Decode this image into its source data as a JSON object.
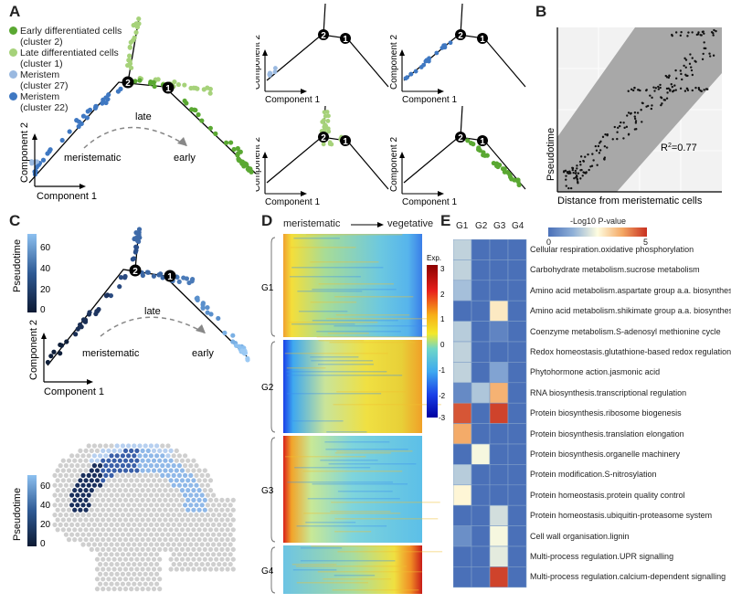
{
  "panels": {
    "a": "A",
    "b": "B",
    "c": "C",
    "d": "D",
    "e": "E"
  },
  "colors": {
    "early": "#5aa832",
    "late": "#a6d27a",
    "meristem27": "#9ab9e0",
    "meristem22": "#3f78c2"
  },
  "panelA": {
    "legend": [
      {
        "line1": "Early differentiated cells",
        "line2": "(cluster 2)",
        "color": "#5aa832"
      },
      {
        "line1": "Late differentiated cells",
        "line2": "(cluster 1)",
        "color": "#a6d27a"
      },
      {
        "line1": "Meristem",
        "line2": "(cluster 27)",
        "color": "#9ab9e0"
      },
      {
        "line1": "Meristem",
        "line2": "(cluster 22)",
        "color": "#3f78c2"
      }
    ],
    "xlabel": "Component 1",
    "ylabel": "Component 2",
    "late": "late",
    "meristematic": "meristematic",
    "early": "early",
    "node1": "1",
    "node2": "2"
  },
  "panelB": {
    "xlabel": "Distance from meristematic cells",
    "ylabel": "Pseudotime",
    "r2_prefix": "R",
    "r2_sup": "2",
    "r2_value": "=0.77"
  },
  "panelC": {
    "colorbar_label": "Pseudotime",
    "ticks": [
      "60",
      "40",
      "20",
      "0"
    ],
    "xlabel": "Component 1",
    "ylabel": "Component 2",
    "late": "late",
    "meristematic": "meristematic",
    "early": "early",
    "node1": "1",
    "node2": "2"
  },
  "panelD": {
    "left_label": "meristematic",
    "right_label": "vegetative",
    "groups": [
      "G1",
      "G2",
      "G3",
      "G4"
    ],
    "colorbar_title": "Exp.",
    "ticks": [
      "3",
      "2",
      "1",
      "0",
      "-1",
      "-2",
      "-3"
    ]
  },
  "panelE": {
    "title": "-Log10 P-value",
    "scale_min": "0",
    "scale_max": "5",
    "columns": [
      "G1",
      "G2",
      "G3",
      "G4"
    ],
    "rows": [
      "Cellular respiration.oxidative phosphorylation",
      "Carbohydrate metabolism.sucrose metabolism",
      "Amino acid metabolism.aspartate group a.a. biosynthesis",
      "Amino acid metabolism.shikimate group a.a. biosynthesis",
      "Coenzyme metabolism.S-adenosyl methionine cycle",
      "Redox homeostasis.glutathione-based redox regulation",
      "Phytohormone action.jasmonic acid",
      "RNA biosynthesis.transcriptional regulation",
      "Protein biosynthesis.ribosome biogenesis",
      "Protein biosynthesis.translation elongation",
      "Protein biosynthesis.organelle machinery",
      "Protein modification.S-nitrosylation",
      "Protein homeostasis.protein quality control",
      "Protein homeostasis.ubiquitin-proteasome system",
      "Cell wall organisation.lignin",
      "Multi-process regulation.UPR signalling",
      "Multi-process regulation.calcium-dependent signalling"
    ],
    "values": [
      [
        1.8,
        0,
        0,
        0
      ],
      [
        1.8,
        0,
        0,
        0
      ],
      [
        1.5,
        0,
        0,
        0
      ],
      [
        0,
        0,
        2.8,
        0
      ],
      [
        1.7,
        0,
        0.4,
        0
      ],
      [
        1.8,
        0,
        0,
        0
      ],
      [
        1.8,
        0,
        1.0,
        0
      ],
      [
        0.5,
        1.6,
        3.6,
        0
      ],
      [
        4.6,
        0,
        4.8,
        0
      ],
      [
        3.7,
        0,
        0,
        0
      ],
      [
        0,
        2.4,
        0,
        0
      ],
      [
        1.7,
        0,
        0,
        0
      ],
      [
        2.6,
        0,
        0,
        0
      ],
      [
        0,
        0,
        2.0,
        0
      ],
      [
        0.6,
        0,
        2.4,
        0
      ],
      [
        0,
        0,
        2.2,
        0
      ],
      [
        0,
        0,
        4.8,
        0
      ]
    ]
  }
}
